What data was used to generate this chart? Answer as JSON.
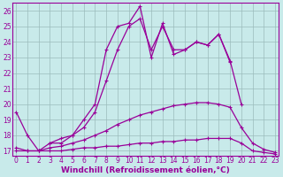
{
  "xlabel": "Windchill (Refroidissement éolien,°C)",
  "x_values": [
    0,
    1,
    2,
    3,
    4,
    5,
    6,
    7,
    8,
    9,
    10,
    11,
    12,
    13,
    14,
    15,
    16,
    17,
    18,
    19,
    20,
    21,
    22,
    23
  ],
  "line1": [
    19.5,
    18.0,
    17.0,
    17.5,
    17.5,
    18.0,
    19.0,
    20.0,
    23.5,
    25.0,
    25.2,
    26.3,
    23.0,
    25.2,
    23.2,
    23.5,
    24.0,
    23.8,
    24.5,
    22.7,
    null,
    null,
    null,
    null
  ],
  "line2": [
    null,
    null,
    null,
    17.5,
    17.8,
    18.0,
    18.5,
    19.5,
    21.5,
    23.5,
    25.0,
    25.5,
    23.5,
    25.0,
    23.5,
    23.5,
    24.0,
    23.8,
    24.5,
    22.8,
    20.0,
    null,
    null,
    null
  ],
  "line3": [
    17.2,
    17.0,
    17.0,
    17.2,
    17.3,
    17.5,
    17.7,
    18.0,
    18.3,
    18.7,
    19.0,
    19.3,
    19.5,
    19.7,
    19.9,
    20.0,
    20.1,
    20.1,
    20.0,
    19.8,
    18.5,
    17.5,
    17.1,
    16.9
  ],
  "line4": [
    17.0,
    17.0,
    17.0,
    17.0,
    17.0,
    17.1,
    17.2,
    17.2,
    17.3,
    17.3,
    17.4,
    17.5,
    17.5,
    17.6,
    17.6,
    17.7,
    17.7,
    17.8,
    17.8,
    17.8,
    17.5,
    17.0,
    16.9,
    16.8
  ],
  "bg_color": "#c8eaea",
  "grid_color": "#9bbcbc",
  "line_color": "#990099",
  "ylim_min": 16.7,
  "ylim_max": 26.5,
  "yticks": [
    17,
    18,
    19,
    20,
    21,
    22,
    23,
    24,
    25,
    26
  ],
  "xticks": [
    0,
    1,
    2,
    3,
    4,
    5,
    6,
    7,
    8,
    9,
    10,
    11,
    12,
    13,
    14,
    15,
    16,
    17,
    18,
    19,
    20,
    21,
    22,
    23
  ],
  "tick_fontsize": 5.5,
  "xlabel_fontsize": 6.5
}
